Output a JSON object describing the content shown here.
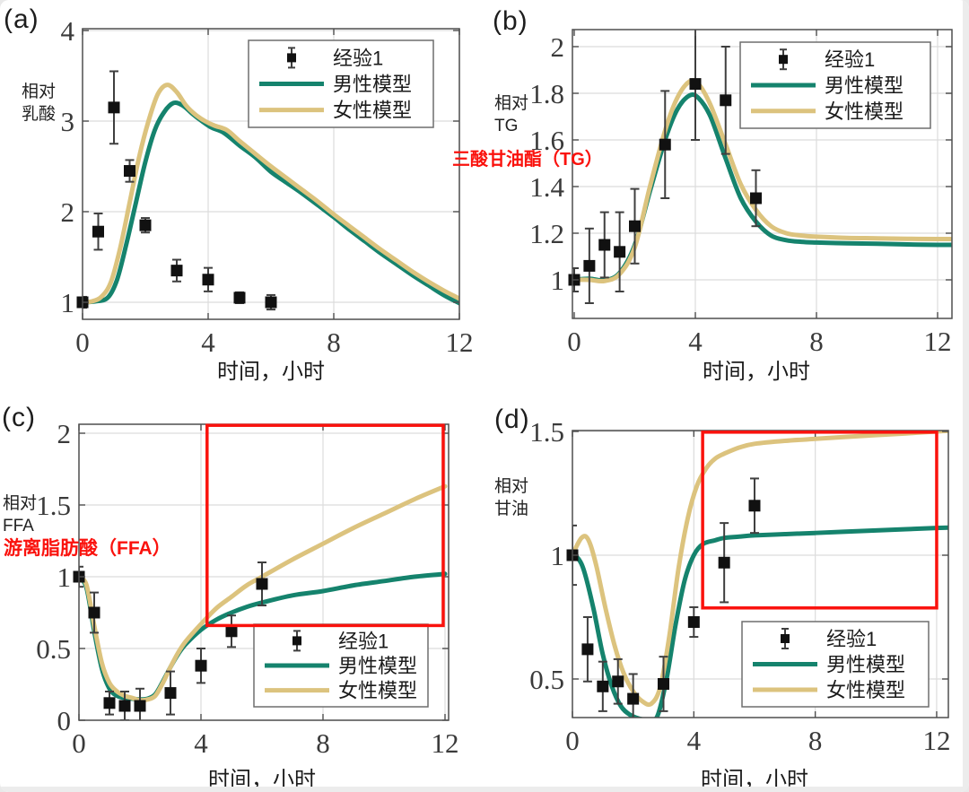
{
  "figure": {
    "background": "#ffffff",
    "colors": {
      "male_line": "#15836d",
      "female_line": "#dcc37e",
      "data_marker": "#111111",
      "error_bar": "#3f3f3f",
      "grid": "#dcdcdc",
      "axis": "#4f4f4f",
      "tick_text": "#3a3a3a",
      "legend_border": "#6e6e6e",
      "annotation_red": "#fa120d"
    },
    "legend": {
      "empirical": "经验1",
      "male": "男性模型",
      "female": "女性模型"
    }
  },
  "chart_data": [
    {
      "id": "a",
      "type": "line",
      "panel_label": "(a)",
      "ylabel_lines": [
        "相对",
        "乳酸"
      ],
      "xlabel": "时间，小时",
      "xticks": [
        0,
        4,
        8,
        12
      ],
      "yticks": [
        1,
        2,
        3,
        4
      ],
      "xlim": [
        0,
        12
      ],
      "ylim": [
        0.81,
        4.02
      ],
      "legend_position": "top-right",
      "empirical": {
        "x": [
          0,
          0.5,
          1,
          1.5,
          2,
          3,
          4,
          5,
          6
        ],
        "y": [
          1.0,
          1.78,
          3.15,
          2.45,
          1.85,
          1.35,
          1.25,
          1.05,
          1.0
        ],
        "err": [
          0.06,
          0.2,
          0.4,
          0.12,
          0.08,
          0.12,
          0.13,
          0.06,
          0.08
        ]
      },
      "series": [
        {
          "key": "male",
          "name": "男性模型",
          "points": [
            [
              0,
              1.0
            ],
            [
              0.4,
              1.01
            ],
            [
              0.8,
              1.05
            ],
            [
              1.1,
              1.25
            ],
            [
              1.4,
              1.65
            ],
            [
              1.7,
              2.1
            ],
            [
              2.0,
              2.55
            ],
            [
              2.3,
              2.9
            ],
            [
              2.6,
              3.1
            ],
            [
              2.9,
              3.2
            ],
            [
              3.2,
              3.17
            ],
            [
              3.5,
              3.08
            ],
            [
              3.8,
              3.0
            ],
            [
              4.1,
              2.93
            ],
            [
              4.5,
              2.87
            ],
            [
              5,
              2.73
            ],
            [
              5.5,
              2.6
            ],
            [
              6,
              2.44
            ],
            [
              6.5,
              2.32
            ],
            [
              7,
              2.2
            ],
            [
              7.5,
              2.07
            ],
            [
              8,
              1.94
            ],
            [
              8.5,
              1.8
            ],
            [
              9,
              1.67
            ],
            [
              9.5,
              1.54
            ],
            [
              10,
              1.42
            ],
            [
              10.5,
              1.3
            ],
            [
              11,
              1.19
            ],
            [
              11.5,
              1.08
            ],
            [
              12,
              0.99
            ]
          ]
        },
        {
          "key": "female",
          "name": "女性模型",
          "points": [
            [
              0,
              1.0
            ],
            [
              0.3,
              1.01
            ],
            [
              0.6,
              1.06
            ],
            [
              0.9,
              1.22
            ],
            [
              1.2,
              1.6
            ],
            [
              1.5,
              2.1
            ],
            [
              1.8,
              2.6
            ],
            [
              2.1,
              3.0
            ],
            [
              2.4,
              3.3
            ],
            [
              2.7,
              3.4
            ],
            [
              3.0,
              3.32
            ],
            [
              3.3,
              3.17
            ],
            [
              3.6,
              3.07
            ],
            [
              3.9,
              3.0
            ],
            [
              4.2,
              2.95
            ],
            [
              4.6,
              2.9
            ],
            [
              5,
              2.78
            ],
            [
              5.5,
              2.64
            ],
            [
              6,
              2.5
            ],
            [
              6.5,
              2.37
            ],
            [
              7,
              2.24
            ],
            [
              7.5,
              2.11
            ],
            [
              8,
              1.97
            ],
            [
              8.5,
              1.84
            ],
            [
              9,
              1.71
            ],
            [
              9.5,
              1.58
            ],
            [
              10,
              1.46
            ],
            [
              10.5,
              1.34
            ],
            [
              11,
              1.23
            ],
            [
              11.5,
              1.13
            ],
            [
              12,
              1.04
            ]
          ]
        }
      ]
    },
    {
      "id": "b",
      "type": "line",
      "panel_label": "(b)",
      "ylabel_lines": [
        "相对",
        "TG"
      ],
      "xlabel": "时间，小时",
      "annotation": {
        "text": "三酸甘油酯（TG）"
      },
      "xticks": [
        0,
        4,
        8,
        12
      ],
      "yticks": [
        1,
        1.2,
        1.4,
        1.6,
        1.8,
        2
      ],
      "xlim": [
        0,
        12.4
      ],
      "ylim": [
        0.835,
        2.073
      ],
      "legend_position": "top-right",
      "empirical": {
        "x": [
          0,
          0.5,
          1,
          1.5,
          2,
          3,
          4,
          5,
          6
        ],
        "y": [
          1.0,
          1.06,
          1.15,
          1.12,
          1.23,
          1.58,
          1.84,
          1.77,
          1.35
        ],
        "err": [
          0.05,
          0.16,
          0.14,
          0.17,
          0.16,
          0.23,
          0.24,
          0.23,
          0.12
        ]
      },
      "series": [
        {
          "key": "male",
          "name": "男性模型",
          "points": [
            [
              0,
              1.0
            ],
            [
              0.5,
              1.005
            ],
            [
              1,
              0.998
            ],
            [
              1.5,
              1.03
            ],
            [
              2,
              1.15
            ],
            [
              2.5,
              1.38
            ],
            [
              3,
              1.6
            ],
            [
              3.4,
              1.73
            ],
            [
              3.8,
              1.79
            ],
            [
              4.1,
              1.78
            ],
            [
              4.5,
              1.7
            ],
            [
              5,
              1.52
            ],
            [
              5.5,
              1.35
            ],
            [
              6,
              1.25
            ],
            [
              6.5,
              1.19
            ],
            [
              7,
              1.17
            ],
            [
              7.5,
              1.163
            ],
            [
              8,
              1.16
            ],
            [
              9,
              1.157
            ],
            [
              10,
              1.155
            ],
            [
              11,
              1.152
            ],
            [
              12,
              1.15
            ],
            [
              12.6,
              1.15
            ]
          ]
        },
        {
          "key": "female",
          "name": "女性模型",
          "points": [
            [
              0,
              1.0
            ],
            [
              0.5,
              1.0
            ],
            [
              1,
              0.995
            ],
            [
              1.5,
              1.025
            ],
            [
              2,
              1.14
            ],
            [
              2.5,
              1.4
            ],
            [
              3,
              1.64
            ],
            [
              3.4,
              1.78
            ],
            [
              3.8,
              1.85
            ],
            [
              4.1,
              1.84
            ],
            [
              4.5,
              1.75
            ],
            [
              5,
              1.58
            ],
            [
              5.5,
              1.41
            ],
            [
              6,
              1.3
            ],
            [
              6.5,
              1.23
            ],
            [
              7,
              1.2
            ],
            [
              7.5,
              1.19
            ],
            [
              8,
              1.185
            ],
            [
              9,
              1.18
            ],
            [
              10,
              1.178
            ],
            [
              11,
              1.176
            ],
            [
              12,
              1.175
            ],
            [
              12.6,
              1.175
            ]
          ]
        }
      ]
    },
    {
      "id": "c",
      "type": "line",
      "panel_label": "(c)",
      "ylabel_lines": [
        "相对",
        "FFA"
      ],
      "xlabel": "时间，小时",
      "annotation": {
        "text": "游离脂肪酸（FFA）"
      },
      "highlight_rect": {
        "x1": 4.2,
        "y1": 0.66,
        "x2": 11.94,
        "y2": 2.055
      },
      "xticks": [
        0,
        4,
        8,
        12
      ],
      "yticks": [
        0,
        0.5,
        1,
        1.5,
        2
      ],
      "xlim": [
        0,
        12.1
      ],
      "ylim": [
        0,
        2.06
      ],
      "legend_position": "bottom-right",
      "empirical": {
        "x": [
          0,
          0.5,
          1,
          1.5,
          2,
          3,
          4,
          5,
          6
        ],
        "y": [
          1.0,
          0.75,
          0.12,
          0.1,
          0.1,
          0.19,
          0.38,
          0.62,
          0.95
        ],
        "err": [
          0.07,
          0.14,
          0.08,
          0.1,
          0.12,
          0.15,
          0.12,
          0.11,
          0.15
        ]
      },
      "series": [
        {
          "key": "male",
          "name": "男性模型",
          "points": [
            [
              0,
              1.0
            ],
            [
              0.25,
              0.92
            ],
            [
              0.5,
              0.62
            ],
            [
              0.75,
              0.36
            ],
            [
              1,
              0.22
            ],
            [
              1.25,
              0.17
            ],
            [
              1.5,
              0.155
            ],
            [
              1.75,
              0.15
            ],
            [
              2,
              0.145
            ],
            [
              2.25,
              0.15
            ],
            [
              2.5,
              0.18
            ],
            [
              2.75,
              0.27
            ],
            [
              3,
              0.37
            ],
            [
              3.25,
              0.46
            ],
            [
              3.5,
              0.53
            ],
            [
              4,
              0.63
            ],
            [
              4.5,
              0.7
            ],
            [
              5,
              0.75
            ],
            [
              5.5,
              0.79
            ],
            [
              6,
              0.82
            ],
            [
              7,
              0.87
            ],
            [
              8,
              0.9
            ],
            [
              9,
              0.94
            ],
            [
              10,
              0.97
            ],
            [
              11,
              1.0
            ],
            [
              12,
              1.02
            ]
          ]
        },
        {
          "key": "female",
          "name": "女性模型",
          "points": [
            [
              0,
              1.0
            ],
            [
              0.25,
              0.94
            ],
            [
              0.5,
              0.66
            ],
            [
              0.75,
              0.4
            ],
            [
              1,
              0.26
            ],
            [
              1.25,
              0.2
            ],
            [
              1.5,
              0.17
            ],
            [
              1.75,
              0.155
            ],
            [
              2,
              0.14
            ],
            [
              2.25,
              0.145
            ],
            [
              2.5,
              0.17
            ],
            [
              2.75,
              0.26
            ],
            [
              3,
              0.37
            ],
            [
              3.25,
              0.47
            ],
            [
              3.5,
              0.55
            ],
            [
              4,
              0.67
            ],
            [
              4.5,
              0.78
            ],
            [
              5,
              0.86
            ],
            [
              5.5,
              0.94
            ],
            [
              6,
              1.0
            ],
            [
              7,
              1.12
            ],
            [
              8,
              1.23
            ],
            [
              9,
              1.34
            ],
            [
              10,
              1.44
            ],
            [
              11,
              1.54
            ],
            [
              12,
              1.63
            ]
          ]
        }
      ]
    },
    {
      "id": "d",
      "type": "line",
      "panel_label": "(d)",
      "ylabel_lines": [
        "相对",
        "甘油"
      ],
      "xlabel": "时间，小时",
      "highlight_rect": {
        "x1": 4.29,
        "y1": 0.787,
        "x2": 12.0,
        "y2": 1.497
      },
      "xticks": [
        0,
        4,
        8,
        12
      ],
      "yticks": [
        0.5,
        1,
        1.5
      ],
      "xlim": [
        0,
        12.4
      ],
      "ylim": [
        0.344,
        1.504
      ],
      "legend_position": "bottom-right",
      "empirical": {
        "x": [
          0,
          0.5,
          1,
          1.5,
          2,
          3,
          4,
          5,
          6
        ],
        "y": [
          1.0,
          0.62,
          0.47,
          0.49,
          0.42,
          0.48,
          0.73,
          0.97,
          1.2
        ],
        "err": [
          0.12,
          0.13,
          0.1,
          0.09,
          0.1,
          0.11,
          0.06,
          0.16,
          0.11
        ]
      },
      "series": [
        {
          "key": "male",
          "name": "男性模型",
          "points": [
            [
              0,
              1.0
            ],
            [
              0.2,
              0.985
            ],
            [
              0.4,
              0.93
            ],
            [
              0.7,
              0.78
            ],
            [
              1,
              0.6
            ],
            [
              1.3,
              0.47
            ],
            [
              1.6,
              0.39
            ],
            [
              1.9,
              0.355
            ],
            [
              2.2,
              0.34
            ],
            [
              2.5,
              0.335
            ],
            [
              2.8,
              0.35
            ],
            [
              3.1,
              0.5
            ],
            [
              3.4,
              0.72
            ],
            [
              3.7,
              0.9
            ],
            [
              4,
              1.0
            ],
            [
              4.3,
              1.045
            ],
            [
              4.7,
              1.06
            ],
            [
              5,
              1.07
            ],
            [
              5.5,
              1.075
            ],
            [
              6,
              1.08
            ],
            [
              7,
              1.085
            ],
            [
              8,
              1.09
            ],
            [
              9,
              1.095
            ],
            [
              10,
              1.1
            ],
            [
              11,
              1.105
            ],
            [
              12,
              1.11
            ],
            [
              12.5,
              1.112
            ]
          ]
        },
        {
          "key": "female",
          "name": "女性模型",
          "points": [
            [
              0,
              1.0
            ],
            [
              0.15,
              1.04
            ],
            [
              0.3,
              1.07
            ],
            [
              0.45,
              1.075
            ],
            [
              0.6,
              1.04
            ],
            [
              0.8,
              0.95
            ],
            [
              1.1,
              0.78
            ],
            [
              1.4,
              0.63
            ],
            [
              1.7,
              0.52
            ],
            [
              2,
              0.45
            ],
            [
              2.3,
              0.41
            ],
            [
              2.6,
              0.4
            ],
            [
              2.9,
              0.47
            ],
            [
              3.2,
              0.68
            ],
            [
              3.5,
              0.95
            ],
            [
              3.8,
              1.15
            ],
            [
              4.1,
              1.28
            ],
            [
              4.4,
              1.35
            ],
            [
              4.7,
              1.39
            ],
            [
              5,
              1.41
            ],
            [
              5.5,
              1.435
            ],
            [
              6,
              1.45
            ],
            [
              7,
              1.462
            ],
            [
              8,
              1.47
            ],
            [
              9,
              1.478
            ],
            [
              10,
              1.485
            ],
            [
              11,
              1.492
            ],
            [
              12,
              1.5
            ],
            [
              12.5,
              1.503
            ]
          ]
        }
      ]
    }
  ]
}
